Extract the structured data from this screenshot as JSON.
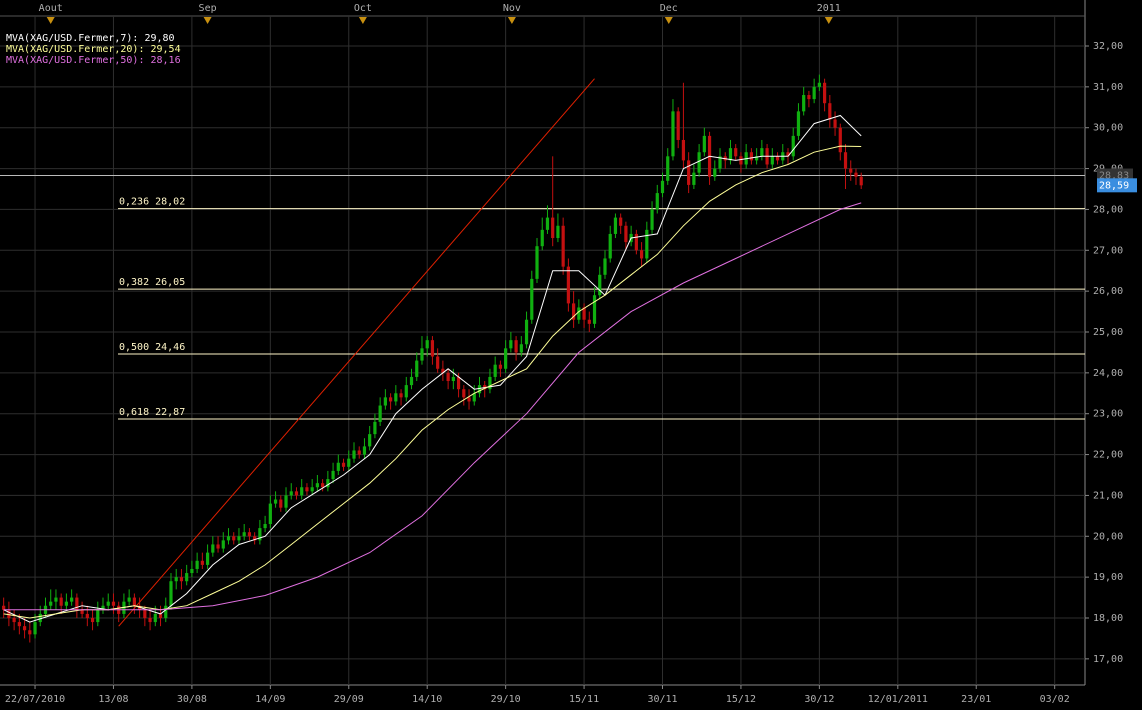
{
  "chart_data": {
    "type": "candlestick",
    "xlim": [
      -0.7,
      206.8
    ],
    "xticks": [
      {
        "value": 6,
        "label": "22/07/2010"
      },
      {
        "value": 21,
        "label": "13/08"
      },
      {
        "value": 36,
        "label": "30/08"
      },
      {
        "value": 51,
        "label": "14/09"
      },
      {
        "value": 66,
        "label": "29/09"
      },
      {
        "value": 81,
        "label": "14/10"
      },
      {
        "value": 96,
        "label": "29/10"
      },
      {
        "value": 111,
        "label": "15/11"
      },
      {
        "value": 126,
        "label": "30/11"
      },
      {
        "value": 141,
        "label": "15/12"
      },
      {
        "value": 156,
        "label": "30/12"
      },
      {
        "value": 171,
        "label": "12/01/2011"
      },
      {
        "value": 186,
        "label": "23/01"
      },
      {
        "value": 201,
        "label": "03/02"
      }
    ],
    "x2ticks": [
      {
        "value": 9,
        "label": "Aout"
      },
      {
        "value": 39,
        "label": "Sep"
      },
      {
        "value": 68.7,
        "label": "Oct"
      },
      {
        "value": 97.2,
        "label": "Nov"
      },
      {
        "value": 127.2,
        "label": "Dec"
      },
      {
        "value": 157.8,
        "label": "2011"
      }
    ],
    "ylim": [
      16.36,
      32.93
    ],
    "yticks": [
      {
        "value": 17,
        "label": "17,00"
      },
      {
        "value": 18,
        "label": "18,00"
      },
      {
        "value": 19,
        "label": "19,00"
      },
      {
        "value": 20,
        "label": "20,00"
      },
      {
        "value": 21,
        "label": "21,00"
      },
      {
        "value": 22,
        "label": "22,00"
      },
      {
        "value": 23,
        "label": "23,00"
      },
      {
        "value": 24,
        "label": "24,00"
      },
      {
        "value": 25,
        "label": "25,00"
      },
      {
        "value": 26,
        "label": "26,00"
      },
      {
        "value": 27,
        "label": "27,00"
      },
      {
        "value": 28,
        "label": "28,00"
      },
      {
        "value": 29,
        "label": "29,00"
      },
      {
        "value": 30,
        "label": "30,00"
      },
      {
        "value": 31,
        "label": "31,00"
      },
      {
        "value": 32,
        "label": "32,00"
      }
    ],
    "grid": true,
    "up_color": "#10b010",
    "down_color": "#c41010",
    "ohlc": [
      [
        18.3,
        18.5,
        18.0,
        18.2
      ],
      [
        18.2,
        18.4,
        17.8,
        18.0
      ],
      [
        18.0,
        18.2,
        17.7,
        17.9
      ],
      [
        17.9,
        18.1,
        17.6,
        17.8
      ],
      [
        17.8,
        18.0,
        17.5,
        17.7
      ],
      [
        17.7,
        17.9,
        17.4,
        17.6
      ],
      [
        17.6,
        18.1,
        17.5,
        17.9
      ],
      [
        17.9,
        18.3,
        17.8,
        18.1
      ],
      [
        18.1,
        18.5,
        18.0,
        18.3
      ],
      [
        18.3,
        18.7,
        18.2,
        18.4
      ],
      [
        18.4,
        18.7,
        18.2,
        18.5
      ],
      [
        18.5,
        18.6,
        18.1,
        18.3
      ],
      [
        18.3,
        18.6,
        18.2,
        18.4
      ],
      [
        18.4,
        18.7,
        18.3,
        18.5
      ],
      [
        18.5,
        18.6,
        18.0,
        18.2
      ],
      [
        18.2,
        18.4,
        18.0,
        18.1
      ],
      [
        18.1,
        18.3,
        17.8,
        18.0
      ],
      [
        18.0,
        18.2,
        17.7,
        17.9
      ],
      [
        17.9,
        18.4,
        17.8,
        18.2
      ],
      [
        18.2,
        18.5,
        18.1,
        18.3
      ],
      [
        18.3,
        18.6,
        18.2,
        18.4
      ],
      [
        18.4,
        18.6,
        18.1,
        18.3
      ],
      [
        18.3,
        18.4,
        17.9,
        18.1
      ],
      [
        18.1,
        18.6,
        18.0,
        18.4
      ],
      [
        18.4,
        18.7,
        18.3,
        18.5
      ],
      [
        18.5,
        18.6,
        18.1,
        18.3
      ],
      [
        18.3,
        18.5,
        18.0,
        18.2
      ],
      [
        18.2,
        18.3,
        17.8,
        18.0
      ],
      [
        18.0,
        18.2,
        17.7,
        17.9
      ],
      [
        17.9,
        18.3,
        17.8,
        18.1
      ],
      [
        18.1,
        18.3,
        17.8,
        18.0
      ],
      [
        18.0,
        18.5,
        17.9,
        18.3
      ],
      [
        18.3,
        19.1,
        18.2,
        18.9
      ],
      [
        18.9,
        19.2,
        18.7,
        19.0
      ],
      [
        19.0,
        19.2,
        18.7,
        18.9
      ],
      [
        18.9,
        19.3,
        18.8,
        19.1
      ],
      [
        19.1,
        19.4,
        19.0,
        19.2
      ],
      [
        19.2,
        19.6,
        19.1,
        19.4
      ],
      [
        19.4,
        19.6,
        19.2,
        19.3
      ],
      [
        19.3,
        19.8,
        19.2,
        19.6
      ],
      [
        19.6,
        20.0,
        19.5,
        19.8
      ],
      [
        19.8,
        20.0,
        19.6,
        19.7
      ],
      [
        19.7,
        20.1,
        19.6,
        19.9
      ],
      [
        19.9,
        20.2,
        19.8,
        20.0
      ],
      [
        20.0,
        20.1,
        19.8,
        19.9
      ],
      [
        19.9,
        20.2,
        19.8,
        20.0
      ],
      [
        20.0,
        20.3,
        19.9,
        20.1
      ],
      [
        20.1,
        20.2,
        19.9,
        20.0
      ],
      [
        20.0,
        20.1,
        19.8,
        19.9
      ],
      [
        19.9,
        20.4,
        19.8,
        20.2
      ],
      [
        20.2,
        20.5,
        20.1,
        20.3
      ],
      [
        20.3,
        21.0,
        20.2,
        20.8
      ],
      [
        20.8,
        21.1,
        20.7,
        20.9
      ],
      [
        20.9,
        21.0,
        20.6,
        20.7
      ],
      [
        20.7,
        21.2,
        20.6,
        21.0
      ],
      [
        21.0,
        21.3,
        20.9,
        21.1
      ],
      [
        21.1,
        21.2,
        20.9,
        21.0
      ],
      [
        21.0,
        21.4,
        20.9,
        21.2
      ],
      [
        21.2,
        21.3,
        21.0,
        21.1
      ],
      [
        21.1,
        21.4,
        21.0,
        21.2
      ],
      [
        21.2,
        21.5,
        21.1,
        21.3
      ],
      [
        21.3,
        21.4,
        21.1,
        21.2
      ],
      [
        21.2,
        21.6,
        21.1,
        21.4
      ],
      [
        21.4,
        21.8,
        21.3,
        21.6
      ],
      [
        21.6,
        22.0,
        21.5,
        21.8
      ],
      [
        21.8,
        21.9,
        21.6,
        21.7
      ],
      [
        21.7,
        22.1,
        21.6,
        21.9
      ],
      [
        21.9,
        22.3,
        21.8,
        22.1
      ],
      [
        22.1,
        22.2,
        21.9,
        22.0
      ],
      [
        22.0,
        22.4,
        21.9,
        22.2
      ],
      [
        22.2,
        22.7,
        22.1,
        22.5
      ],
      [
        22.5,
        23.0,
        22.4,
        22.8
      ],
      [
        22.8,
        23.4,
        22.7,
        23.2
      ],
      [
        23.2,
        23.6,
        23.1,
        23.4
      ],
      [
        23.4,
        23.5,
        23.1,
        23.3
      ],
      [
        23.3,
        23.7,
        23.2,
        23.5
      ],
      [
        23.5,
        23.6,
        23.2,
        23.4
      ],
      [
        23.4,
        23.9,
        23.3,
        23.7
      ],
      [
        23.7,
        24.1,
        23.6,
        23.9
      ],
      [
        23.9,
        24.5,
        23.8,
        24.3
      ],
      [
        24.3,
        24.9,
        24.2,
        24.6
      ],
      [
        24.6,
        24.9,
        24.4,
        24.8
      ],
      [
        24.8,
        24.9,
        24.2,
        24.4
      ],
      [
        24.4,
        24.6,
        24.0,
        24.1
      ],
      [
        24.1,
        24.3,
        23.8,
        24.0
      ],
      [
        24.0,
        24.1,
        23.6,
        23.8
      ],
      [
        23.8,
        24.1,
        23.6,
        23.9
      ],
      [
        23.9,
        24.0,
        23.4,
        23.6
      ],
      [
        23.6,
        23.7,
        23.2,
        23.4
      ],
      [
        23.4,
        23.6,
        23.1,
        23.3
      ],
      [
        23.3,
        23.7,
        23.2,
        23.5
      ],
      [
        23.5,
        23.9,
        23.4,
        23.7
      ],
      [
        23.7,
        23.8,
        23.4,
        23.6
      ],
      [
        23.6,
        24.1,
        23.5,
        23.9
      ],
      [
        23.9,
        24.4,
        23.8,
        24.2
      ],
      [
        24.2,
        24.3,
        23.9,
        24.1
      ],
      [
        24.1,
        24.8,
        24.0,
        24.6
      ],
      [
        24.6,
        25.0,
        24.5,
        24.8
      ],
      [
        24.8,
        24.9,
        24.3,
        24.5
      ],
      [
        24.5,
        24.9,
        24.4,
        24.7
      ],
      [
        24.7,
        25.5,
        24.6,
        25.3
      ],
      [
        25.3,
        26.5,
        25.2,
        26.3
      ],
      [
        26.3,
        27.3,
        26.2,
        27.1
      ],
      [
        27.1,
        27.8,
        27.0,
        27.5
      ],
      [
        27.5,
        28.1,
        27.4,
        27.8
      ],
      [
        27.8,
        29.3,
        27.1,
        27.3
      ],
      [
        27.3,
        27.9,
        27.2,
        27.6
      ],
      [
        27.6,
        27.8,
        26.4,
        26.6
      ],
      [
        26.6,
        26.8,
        25.5,
        25.7
      ],
      [
        25.7,
        26.0,
        25.1,
        25.3
      ],
      [
        25.3,
        25.8,
        25.2,
        25.6
      ],
      [
        25.6,
        25.7,
        25.1,
        25.3
      ],
      [
        25.3,
        25.5,
        25.0,
        25.2
      ],
      [
        25.2,
        26.1,
        25.1,
        25.9
      ],
      [
        25.9,
        26.6,
        25.8,
        26.4
      ],
      [
        26.4,
        27.0,
        26.3,
        26.8
      ],
      [
        26.8,
        27.6,
        26.7,
        27.4
      ],
      [
        27.4,
        27.9,
        27.3,
        27.8
      ],
      [
        27.8,
        27.9,
        27.4,
        27.6
      ],
      [
        27.6,
        27.7,
        27.0,
        27.2
      ],
      [
        27.2,
        27.6,
        27.1,
        27.4
      ],
      [
        27.4,
        27.5,
        26.9,
        27.0
      ],
      [
        27.0,
        27.2,
        26.6,
        26.8
      ],
      [
        26.8,
        27.7,
        26.7,
        27.5
      ],
      [
        27.5,
        28.2,
        27.4,
        28.0
      ],
      [
        28.0,
        28.6,
        27.9,
        28.4
      ],
      [
        28.4,
        28.9,
        28.3,
        28.7
      ],
      [
        28.7,
        29.5,
        28.6,
        29.3
      ],
      [
        29.3,
        30.7,
        29.2,
        30.4
      ],
      [
        30.4,
        30.5,
        29.5,
        29.7
      ],
      [
        29.7,
        31.1,
        29.0,
        29.2
      ],
      [
        29.2,
        29.4,
        28.4,
        28.6
      ],
      [
        28.6,
        29.1,
        28.5,
        28.9
      ],
      [
        28.9,
        29.6,
        28.8,
        29.4
      ],
      [
        29.4,
        30.0,
        29.3,
        29.8
      ],
      [
        29.8,
        29.9,
        28.6,
        28.8
      ],
      [
        28.8,
        29.2,
        28.7,
        29.0
      ],
      [
        29.0,
        29.5,
        28.9,
        29.3
      ],
      [
        29.3,
        29.4,
        29.0,
        29.2
      ],
      [
        29.2,
        29.7,
        29.1,
        29.5
      ],
      [
        29.5,
        29.6,
        29.2,
        29.3
      ],
      [
        29.3,
        29.4,
        28.9,
        29.1
      ],
      [
        29.1,
        29.6,
        29.0,
        29.4
      ],
      [
        29.4,
        29.5,
        29.1,
        29.2
      ],
      [
        29.2,
        29.5,
        29.1,
        29.3
      ],
      [
        29.3,
        29.7,
        29.2,
        29.5
      ],
      [
        29.5,
        29.6,
        29.0,
        29.1
      ],
      [
        29.1,
        29.5,
        29.0,
        29.3
      ],
      [
        29.3,
        29.4,
        29.1,
        29.2
      ],
      [
        29.2,
        29.6,
        29.1,
        29.4
      ],
      [
        29.4,
        29.5,
        29.1,
        29.3
      ],
      [
        29.3,
        30.0,
        29.2,
        29.8
      ],
      [
        29.8,
        30.6,
        29.7,
        30.4
      ],
      [
        30.4,
        31.0,
        30.3,
        30.8
      ],
      [
        30.8,
        30.9,
        30.5,
        30.7
      ],
      [
        30.7,
        31.2,
        30.6,
        31.0
      ],
      [
        31.0,
        31.3,
        30.9,
        31.1
      ],
      [
        31.1,
        31.2,
        30.4,
        30.6
      ],
      [
        30.6,
        30.8,
        30.0,
        30.2
      ],
      [
        30.2,
        30.4,
        29.8,
        30.0
      ],
      [
        30.0,
        30.1,
        29.2,
        29.4
      ],
      [
        29.4,
        29.6,
        28.5,
        29.0
      ],
      [
        29.0,
        29.2,
        28.7,
        28.9
      ],
      [
        28.9,
        29.0,
        28.6,
        28.8
      ],
      [
        28.8,
        28.9,
        28.5,
        28.59
      ]
    ],
    "series": [
      {
        "name": "MVA(XAG/USD.Fermer,7): 29,80",
        "color": "#ffffff",
        "x": [
          0,
          5,
          10,
          15,
          20,
          25,
          30,
          35,
          40,
          45,
          50,
          55,
          60,
          65,
          70,
          75,
          80,
          85,
          90,
          95,
          100,
          105,
          110,
          115,
          120,
          125,
          130,
          135,
          140,
          145,
          150,
          155,
          160,
          164
        ],
        "values": [
          18.2,
          17.9,
          18.1,
          18.3,
          18.2,
          18.3,
          18.1,
          18.6,
          19.3,
          19.8,
          20.0,
          20.7,
          21.1,
          21.5,
          22.0,
          23.0,
          23.6,
          24.1,
          23.6,
          23.7,
          24.4,
          26.5,
          26.5,
          25.9,
          27.3,
          27.4,
          29.0,
          29.3,
          29.2,
          29.3,
          29.3,
          30.1,
          30.3,
          29.8
        ]
      },
      {
        "name": "MVA(XAG/USD.Fermer,20): 29,54",
        "color": "#ffff99",
        "x": [
          0,
          5,
          10,
          15,
          20,
          25,
          30,
          35,
          40,
          45,
          50,
          55,
          60,
          65,
          70,
          75,
          80,
          85,
          90,
          95,
          100,
          105,
          110,
          115,
          120,
          125,
          130,
          135,
          140,
          145,
          150,
          155,
          160,
          164
        ],
        "values": [
          18.1,
          18.0,
          18.1,
          18.2,
          18.2,
          18.3,
          18.2,
          18.3,
          18.6,
          18.9,
          19.3,
          19.8,
          20.3,
          20.8,
          21.3,
          21.9,
          22.6,
          23.1,
          23.5,
          23.8,
          24.1,
          24.9,
          25.5,
          25.9,
          26.4,
          26.9,
          27.6,
          28.2,
          28.6,
          28.9,
          29.1,
          29.4,
          29.55,
          29.54
        ]
      },
      {
        "name": "MVA(XAG/USD.Fermer,50): 28,16",
        "color": "#e070e0",
        "x": [
          0,
          10,
          20,
          30,
          40,
          50,
          60,
          70,
          80,
          90,
          100,
          110,
          120,
          130,
          140,
          150,
          160,
          164
        ],
        "values": [
          18.2,
          18.2,
          18.2,
          18.2,
          18.3,
          18.55,
          19.0,
          19.6,
          20.5,
          21.8,
          23.0,
          24.5,
          25.5,
          26.2,
          26.8,
          27.4,
          28.0,
          28.16
        ]
      }
    ],
    "trend_line": {
      "color": "#e02000",
      "x": [
        22,
        113
      ],
      "values": [
        17.8,
        31.2
      ]
    },
    "fib_color": "#fff6c8",
    "fib_levels": [
      {
        "value": 28.02,
        "label": "0,236 28,02"
      },
      {
        "value": 26.05,
        "label": "0,382 26,05"
      },
      {
        "value": 24.46,
        "label": "0,500 24,46"
      },
      {
        "value": 22.87,
        "label": "0,618 22,87"
      }
    ],
    "reference_line": {
      "value": 28.83,
      "label": "28,83"
    },
    "last_price": {
      "value": 28.59,
      "label": "28,59"
    }
  }
}
